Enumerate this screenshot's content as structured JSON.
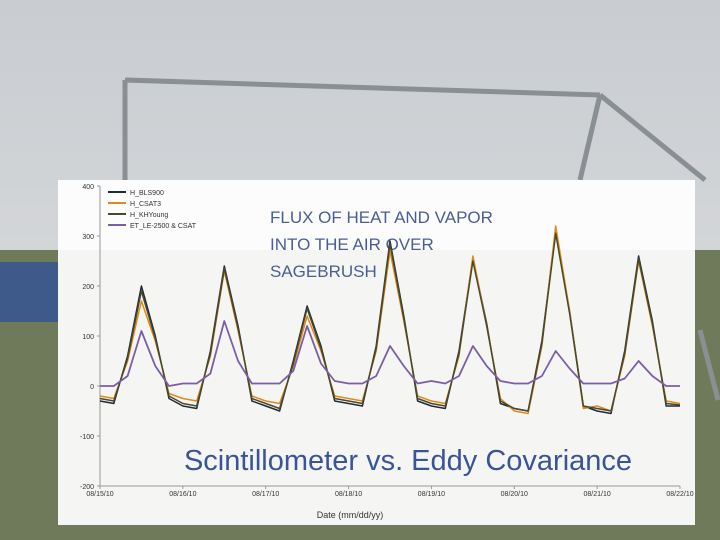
{
  "chart_data": {
    "type": "line",
    "title_lines": [
      "FLUX OF HEAT AND VAPOR",
      "INTO THE AIR OVER",
      "SAGEBRUSH"
    ],
    "subtitle": "Scintillometer vs. Eddy Covariance",
    "x_label": "Date (mm/dd/yy)",
    "x": [
      0,
      0.167,
      0.333,
      0.5,
      0.667,
      0.833,
      1,
      1.167,
      1.333,
      1.5,
      1.667,
      1.833,
      2,
      2.167,
      2.333,
      2.5,
      2.667,
      2.833,
      3,
      3.167,
      3.333,
      3.5,
      3.667,
      3.833,
      4,
      4.167,
      4.333,
      4.5,
      4.667,
      4.833,
      5,
      5.167,
      5.333,
      5.5,
      5.667,
      5.833,
      6,
      6.167,
      6.333,
      6.5,
      6.667,
      6.833,
      7
    ],
    "series": [
      {
        "name": "H_BLS900",
        "color": "#1f2a3a",
        "values": [
          -30,
          -35,
          60,
          200,
          100,
          -25,
          -40,
          -45,
          70,
          240,
          120,
          -30,
          -40,
          -50,
          50,
          160,
          80,
          -30,
          -35,
          -40,
          80,
          290,
          140,
          -30,
          -40,
          -45,
          70,
          255,
          125,
          -35,
          -45,
          -50,
          90,
          310,
          150,
          -40,
          -50,
          -55,
          70,
          260,
          130,
          -40,
          -40
        ]
      },
      {
        "name": "H_CSAT3",
        "color": "#e08a1e",
        "values": [
          -20,
          -25,
          50,
          170,
          90,
          -15,
          -25,
          -30,
          60,
          230,
          110,
          -20,
          -30,
          -35,
          40,
          140,
          70,
          -20,
          -25,
          -30,
          70,
          270,
          130,
          -20,
          -30,
          -35,
          60,
          260,
          120,
          -25,
          -50,
          -55,
          80,
          320,
          150,
          -45,
          -40,
          -50,
          60,
          250,
          120,
          -30,
          -35
        ]
      },
      {
        "name": "H_KHYoung",
        "color": "#4a4a2a",
        "values": [
          -25,
          -30,
          55,
          190,
          95,
          -20,
          -35,
          -40,
          65,
          235,
          115,
          -25,
          -35,
          -45,
          45,
          155,
          75,
          -25,
          -30,
          -35,
          75,
          285,
          135,
          -25,
          -35,
          -40,
          65,
          250,
          120,
          -30,
          -45,
          -50,
          85,
          305,
          145,
          -40,
          -45,
          -50,
          65,
          255,
          125,
          -35,
          -38
        ]
      },
      {
        "name": "ET_LE-2500 & CSAT",
        "color": "#7b5ea7",
        "values": [
          0,
          0,
          20,
          110,
          40,
          0,
          5,
          5,
          25,
          130,
          50,
          5,
          5,
          5,
          30,
          120,
          45,
          10,
          5,
          5,
          20,
          80,
          40,
          5,
          10,
          5,
          20,
          80,
          40,
          10,
          5,
          5,
          20,
          70,
          35,
          5,
          5,
          5,
          15,
          50,
          20,
          0,
          0
        ]
      }
    ],
    "xlim": [
      0,
      7
    ],
    "xticks": [
      {
        "value": 0,
        "label": "08/15/10"
      },
      {
        "value": 1,
        "label": "08/16/10"
      },
      {
        "value": 2,
        "label": "08/17/10"
      },
      {
        "value": 3,
        "label": "08/18/10"
      },
      {
        "value": 4,
        "label": "08/19/10"
      },
      {
        "value": 5,
        "label": "08/20/10"
      },
      {
        "value": 6,
        "label": "08/21/10"
      },
      {
        "value": 7,
        "label": "08/22/10"
      }
    ],
    "ylim": [
      -200,
      400
    ],
    "yticks": [
      -200,
      -100,
      0,
      100,
      200,
      300,
      400
    ],
    "grid": false
  }
}
